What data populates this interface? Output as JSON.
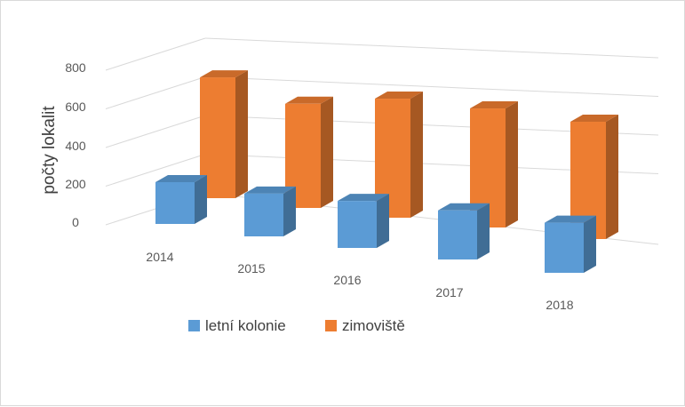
{
  "chart_data": {
    "type": "bar",
    "title": "",
    "xlabel": "",
    "ylabel": "počty lokalit",
    "ylim": [
      0,
      800
    ],
    "yticks": [
      0,
      200,
      400,
      600,
      800
    ],
    "grid": true,
    "legend_position": "bottom",
    "categories": [
      "2014",
      "2015",
      "2016",
      "2017",
      "2018"
    ],
    "series": [
      {
        "name": "letní kolonie",
        "color": "#5b9bd5",
        "values": [
          200,
          205,
          225,
          235,
          240
        ]
      },
      {
        "name": "zimoviště",
        "color": "#ed7d31",
        "values": [
          690,
          595,
          680,
          680,
          670
        ]
      }
    ]
  }
}
